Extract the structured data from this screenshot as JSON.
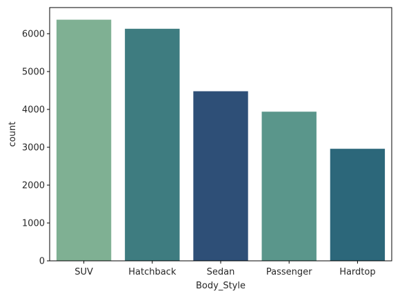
{
  "chart_data": {
    "type": "bar",
    "xlabel": "Body_Style",
    "ylabel": "count",
    "ylim": [
      0,
      6690
    ],
    "yticks": [
      0,
      1000,
      2000,
      3000,
      4000,
      5000,
      6000
    ],
    "grid": false,
    "categories": [
      "SUV",
      "Hatchback",
      "Sedan",
      "Passenger",
      "Hardtop"
    ],
    "values": [
      6370,
      6130,
      4480,
      3940,
      2960
    ],
    "colors": [
      "#7fb093",
      "#3e7c80",
      "#2e4f77",
      "#5a968b",
      "#2c677a"
    ]
  }
}
